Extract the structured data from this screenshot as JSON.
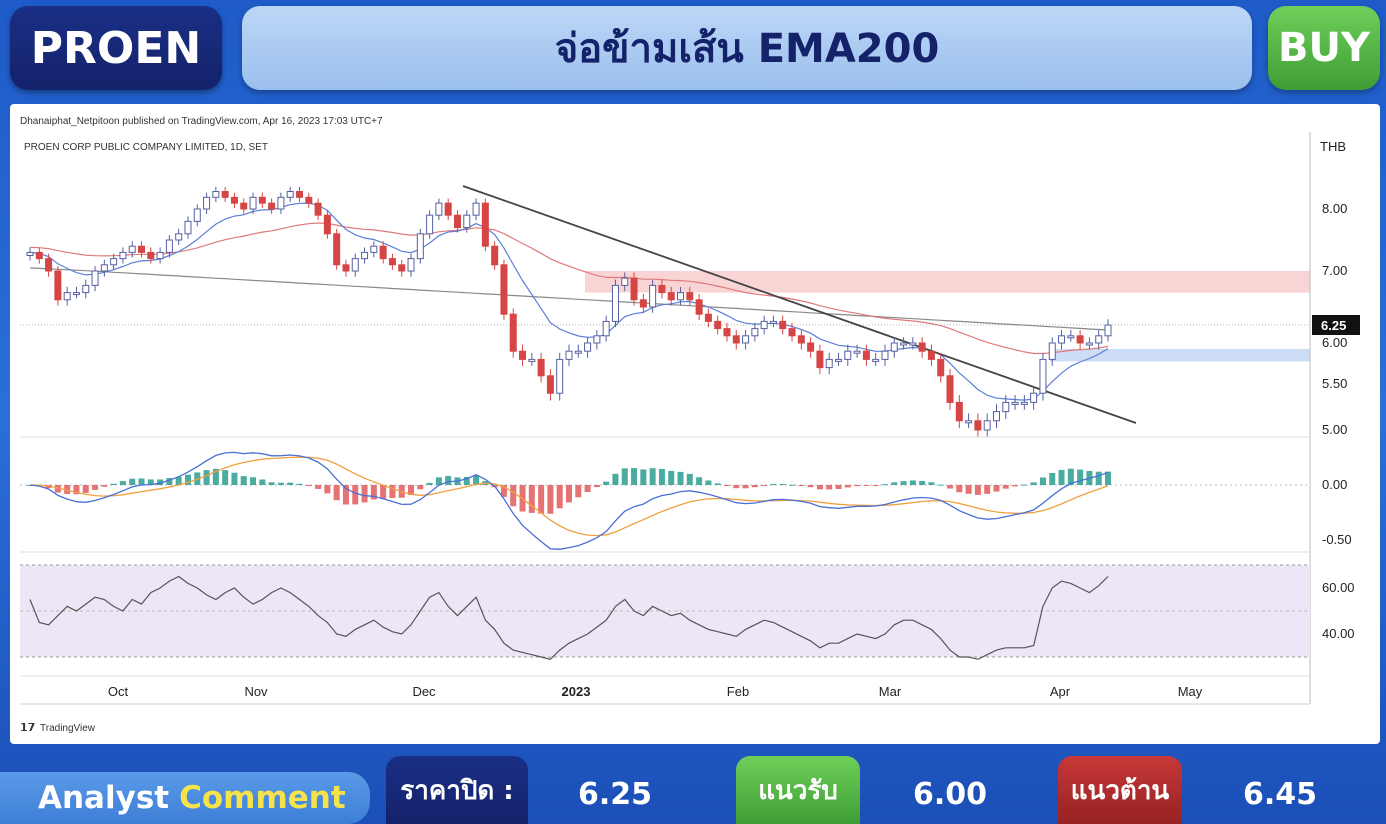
{
  "header": {
    "ticker": "PROEN",
    "headline": "จ่อข้ามเส้น EMA200",
    "signal": "BUY"
  },
  "chart_meta": {
    "publisher": "Dhanaiphat_Netpitoon published on TradingView.com, Apr 16, 2023 17:03 UTC+7",
    "symbol": "PROEN CORP PUBLIC COMPANY LIMITED, 1D, SET",
    "currency": "THB",
    "last_price_tag": "6.25",
    "brand": "TradingView",
    "colors": {
      "up": "#ffffff",
      "down": "#d64545",
      "ema_fast": "#5b7fd6",
      "ema_mid": "#e07a7a",
      "ema_slow": "#888888",
      "trendline": "#444444",
      "resistance_zone": "#f6c9c9",
      "support_zone": "#c9d9f6",
      "macd": "#4a6fd6",
      "signal": "#f0a040",
      "rsi": "#555555"
    }
  },
  "footer": {
    "analyst_word1": "Analyst",
    "analyst_word2": "Comment",
    "close_label": "ราคาปิด :",
    "close_value": "6.25",
    "support_label": "แนวรับ",
    "support_value": "6.00",
    "resistance_label": "แนวต้าน",
    "resistance_value": "6.45"
  },
  "chart_data": [
    {
      "type": "candlestick",
      "title": "PROEN CORP PUBLIC COMPANY LIMITED, 1D, SET",
      "y_ticks": [
        "8.00",
        "7.00",
        "6.00",
        "5.50",
        "5.00"
      ],
      "y_tick_values": [
        8.0,
        7.0,
        6.0,
        5.5,
        5.0
      ],
      "x_ticks": [
        "Oct",
        "Nov",
        "Dec",
        "2023",
        "Feb",
        "Mar",
        "Apr",
        "May"
      ],
      "close": [
        7.3,
        7.2,
        7.0,
        6.6,
        6.7,
        6.7,
        6.8,
        7.0,
        7.1,
        7.2,
        7.3,
        7.4,
        7.3,
        7.2,
        7.3,
        7.5,
        7.6,
        7.8,
        8.0,
        8.2,
        8.3,
        8.2,
        8.1,
        8.0,
        8.2,
        8.1,
        8.0,
        8.2,
        8.3,
        8.2,
        8.1,
        7.9,
        7.6,
        7.1,
        7.0,
        7.2,
        7.3,
        7.4,
        7.2,
        7.1,
        7.0,
        7.2,
        7.6,
        7.9,
        8.1,
        7.9,
        7.7,
        7.9,
        8.1,
        7.4,
        7.1,
        6.4,
        5.9,
        5.8,
        5.8,
        5.6,
        5.4,
        5.8,
        5.9,
        5.9,
        6.0,
        6.1,
        6.3,
        6.8,
        6.9,
        6.6,
        6.5,
        6.8,
        6.7,
        6.6,
        6.7,
        6.6,
        6.4,
        6.3,
        6.2,
        6.1,
        6.0,
        6.1,
        6.2,
        6.3,
        6.3,
        6.2,
        6.1,
        6.0,
        5.9,
        5.7,
        5.8,
        5.8,
        5.9,
        5.9,
        5.8,
        5.8,
        5.9,
        6.0,
        6.0,
        6.0,
        5.9,
        5.8,
        5.6,
        5.3,
        5.1,
        5.1,
        5.0,
        5.1,
        5.2,
        5.3,
        5.3,
        5.3,
        5.4,
        5.8,
        6.0,
        6.1,
        6.1,
        6.0,
        6.0,
        6.1,
        6.25
      ],
      "ema200_resistance_zone": [
        6.7,
        7.0
      ],
      "support_zone": [
        5.8,
        6.0
      ]
    },
    {
      "type": "line",
      "name": "MACD",
      "y_ticks": [
        "0.00",
        "-0.50"
      ],
      "y_tick_values": [
        0.0,
        -0.5
      ]
    },
    {
      "type": "line",
      "name": "RSI",
      "y_ticks": [
        "60.00",
        "40.00"
      ],
      "y_tick_values": [
        60.0,
        40.0
      ],
      "values": [
        55,
        45,
        44,
        48,
        52,
        50,
        53,
        56,
        55,
        52,
        50,
        55,
        53,
        58,
        60,
        63,
        65,
        62,
        60,
        57,
        55,
        58,
        60,
        56,
        53,
        55,
        58,
        60,
        58,
        55,
        52,
        48,
        45,
        40,
        39,
        42,
        44,
        46,
        43,
        41,
        40,
        44,
        50,
        56,
        58,
        52,
        48,
        52,
        56,
        46,
        42,
        36,
        33,
        32,
        31,
        30,
        29,
        33,
        36,
        38,
        40,
        43,
        46,
        52,
        55,
        50,
        48,
        52,
        50,
        48,
        49,
        46,
        44,
        42,
        41,
        40,
        39,
        42,
        44,
        46,
        45,
        43,
        41,
        39,
        37,
        34,
        36,
        36,
        38,
        40,
        39,
        38,
        40,
        44,
        46,
        46,
        44,
        42,
        38,
        33,
        30,
        30,
        29,
        31,
        33,
        34,
        34,
        34,
        35,
        52,
        60,
        63,
        62,
        60,
        58,
        61,
        65
      ]
    }
  ]
}
